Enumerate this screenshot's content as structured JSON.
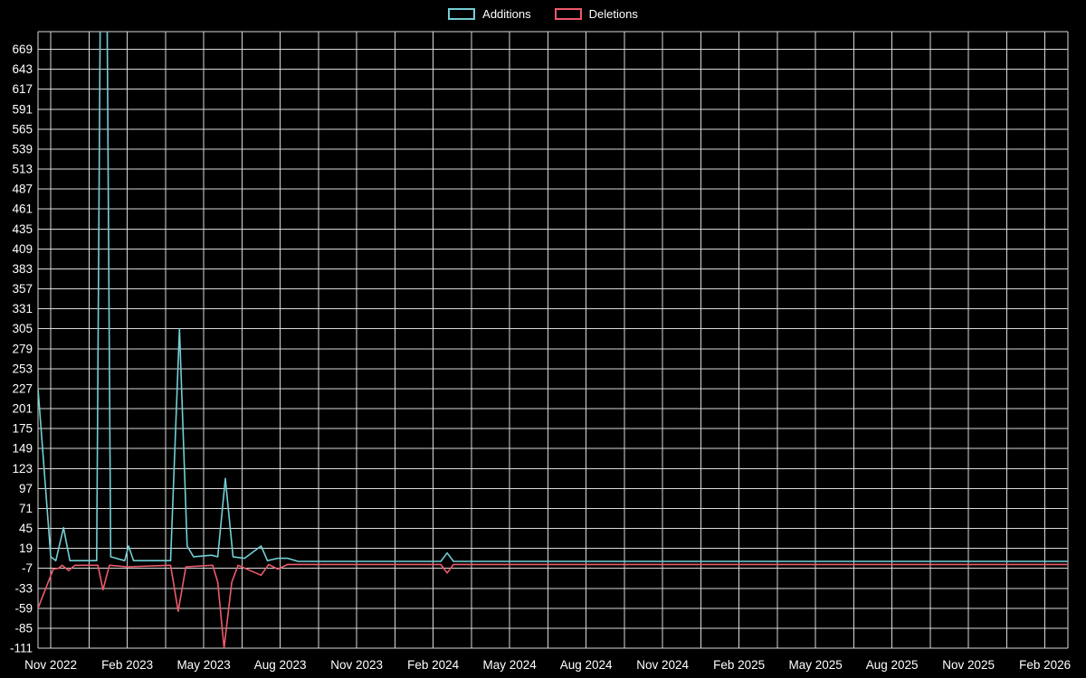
{
  "chart_data": {
    "type": "line",
    "title": "",
    "legend_position": "top-center",
    "grid": true,
    "colors": {
      "background": "#000000",
      "grid": "#d9d9d9",
      "text": "#ffffff"
    },
    "x_axis": {
      "tick_labels": [
        "Nov 2022",
        "Feb 2023",
        "May 2023",
        "Aug 2023",
        "Nov 2023",
        "Feb 2024",
        "May 2024",
        "Aug 2024",
        "Nov 2024",
        "Feb 2025",
        "May 2025",
        "Aug 2025",
        "Nov 2025",
        "Feb 2026"
      ],
      "tick_months": [
        0,
        3,
        6,
        9,
        12,
        15,
        18,
        21,
        24,
        27,
        30,
        33,
        36,
        39
      ],
      "min_month": -0.5,
      "max_month": 39.9
    },
    "y_axis": {
      "tick_values": [
        669,
        643,
        617,
        591,
        565,
        539,
        513,
        487,
        461,
        435,
        409,
        383,
        357,
        331,
        305,
        279,
        253,
        227,
        201,
        175,
        149,
        123,
        97,
        71,
        45,
        19,
        -7,
        -33,
        -59,
        -85,
        -111
      ],
      "min": -111,
      "max": 692
    },
    "series": [
      {
        "name": "Additions",
        "color": "#72cfd4",
        "points": [
          [
            -0.5,
            227
          ],
          [
            0.0,
            8
          ],
          [
            0.2,
            3
          ],
          [
            0.5,
            46
          ],
          [
            0.75,
            3
          ],
          [
            1.3,
            3
          ],
          [
            1.8,
            3
          ],
          [
            1.95,
            760
          ],
          [
            2.2,
            760
          ],
          [
            2.35,
            8
          ],
          [
            2.9,
            3
          ],
          [
            3.05,
            22
          ],
          [
            3.25,
            3
          ],
          [
            4.7,
            3
          ],
          [
            5.05,
            305
          ],
          [
            5.35,
            22
          ],
          [
            5.6,
            8
          ],
          [
            6.3,
            10
          ],
          [
            6.55,
            8
          ],
          [
            6.85,
            110
          ],
          [
            7.15,
            8
          ],
          [
            7.6,
            6
          ],
          [
            8.25,
            22
          ],
          [
            8.5,
            3
          ],
          [
            8.9,
            6
          ],
          [
            9.3,
            6
          ],
          [
            9.7,
            2
          ],
          [
            12.0,
            2
          ],
          [
            15.3,
            2
          ],
          [
            15.55,
            13
          ],
          [
            15.8,
            2
          ],
          [
            20.0,
            2
          ],
          [
            39.9,
            2
          ]
        ]
      },
      {
        "name": "Deletions",
        "color": "#ee5a6a",
        "points": [
          [
            -0.5,
            -59
          ],
          [
            0.1,
            -8
          ],
          [
            0.3,
            -7
          ],
          [
            0.45,
            -3
          ],
          [
            0.7,
            -10
          ],
          [
            0.95,
            -3
          ],
          [
            1.5,
            -3
          ],
          [
            1.85,
            -3
          ],
          [
            2.05,
            -35
          ],
          [
            2.3,
            -3
          ],
          [
            3.0,
            -5
          ],
          [
            4.7,
            -3
          ],
          [
            5.0,
            -63
          ],
          [
            5.3,
            -5
          ],
          [
            6.35,
            -3
          ],
          [
            6.55,
            -25
          ],
          [
            6.8,
            -111
          ],
          [
            7.1,
            -25
          ],
          [
            7.35,
            -3
          ],
          [
            8.25,
            -16
          ],
          [
            8.55,
            -2
          ],
          [
            8.9,
            -8
          ],
          [
            9.3,
            -2
          ],
          [
            9.7,
            -2
          ],
          [
            12.0,
            -2
          ],
          [
            15.3,
            -2
          ],
          [
            15.55,
            -13
          ],
          [
            15.8,
            -2
          ],
          [
            20.0,
            -2
          ],
          [
            39.9,
            -2
          ]
        ]
      }
    ]
  }
}
